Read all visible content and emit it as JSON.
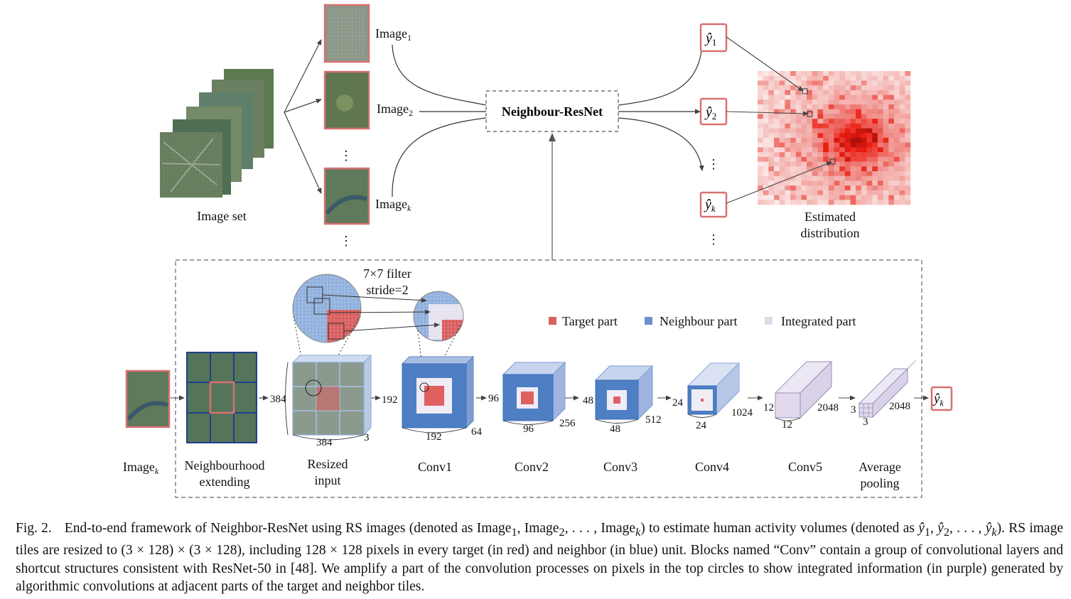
{
  "top": {
    "image_set_label": "Image set",
    "image_labels": [
      "Image",
      "Image",
      "Image"
    ],
    "image_subs": [
      "1",
      "2",
      "k"
    ],
    "model_name": "Neighbour-ResNet",
    "outputs": [
      {
        "main": "ŷ",
        "sub": "1"
      },
      {
        "main": "ŷ",
        "sub": "2"
      },
      {
        "main": "ŷ",
        "sub": "k"
      }
    ],
    "estimated_label_line1": "Estimated",
    "estimated_label_line2": "distribution",
    "ellipsis": "⋮"
  },
  "bottom": {
    "filter_line1": "7×7 filter",
    "filter_line2": "stride=2",
    "legend": [
      {
        "label": "Target part",
        "color": "#d96060",
        "text_color": "#c86060"
      },
      {
        "label": "Neighbour part",
        "color": "#6a8fc8",
        "text_color": "#1f3f8a"
      },
      {
        "label": "Integrated part",
        "color": "#e0dcec",
        "text_color": "#7a6c98"
      }
    ],
    "input_label": "Image",
    "input_sub": "k",
    "stage_labels": [
      [
        "Neighbourhood",
        "extending"
      ],
      [
        "Resized",
        "input"
      ],
      [
        "Conv1"
      ],
      [
        "Conv2"
      ],
      [
        "Conv3"
      ],
      [
        "Conv4"
      ],
      [
        "Conv5"
      ],
      [
        "Average",
        "pooling"
      ]
    ],
    "dims": {
      "resized": [
        "384",
        "384",
        "3"
      ],
      "conv1": [
        "192",
        "192",
        "64"
      ],
      "conv2": [
        "96",
        "96",
        "256"
      ],
      "conv3": [
        "48",
        "48",
        "512"
      ],
      "conv4": [
        "24",
        "24",
        "1024"
      ],
      "conv5": [
        "12",
        "12",
        "2048"
      ],
      "pool": [
        "3",
        "3",
        "2048"
      ]
    },
    "output": {
      "main": "ŷ",
      "sub": "k"
    }
  },
  "caption": {
    "fig_label": "Fig. 2.",
    "text_1": "End-to-end framework of Neighbor-ResNet using RS images (denoted as Image",
    "sub_1": "1",
    "text_2": ", Image",
    "sub_2": "2",
    "text_3": ", . . . , Image",
    "sub_k": "k",
    "text_4": ") to estimate human activity volumes (denoted as ",
    "yhat": "ŷ",
    "text_5": ", . . . , ",
    "text_6": "). RS image tiles are resized to (3 × 128) × (3 × 128), including 128 × 128 pixels in every target (in red) and neighbor (in blue) unit. Blocks named “Conv” contain a group of convolutional layers and shortcut structures consistent with ResNet-50 in [48]. We amplify a part of the convolution processes on pixels in the top circles to show integrated information (in purple) generated by algorithmic convolutions at adjacent parts of the target and neighbor tiles."
  }
}
